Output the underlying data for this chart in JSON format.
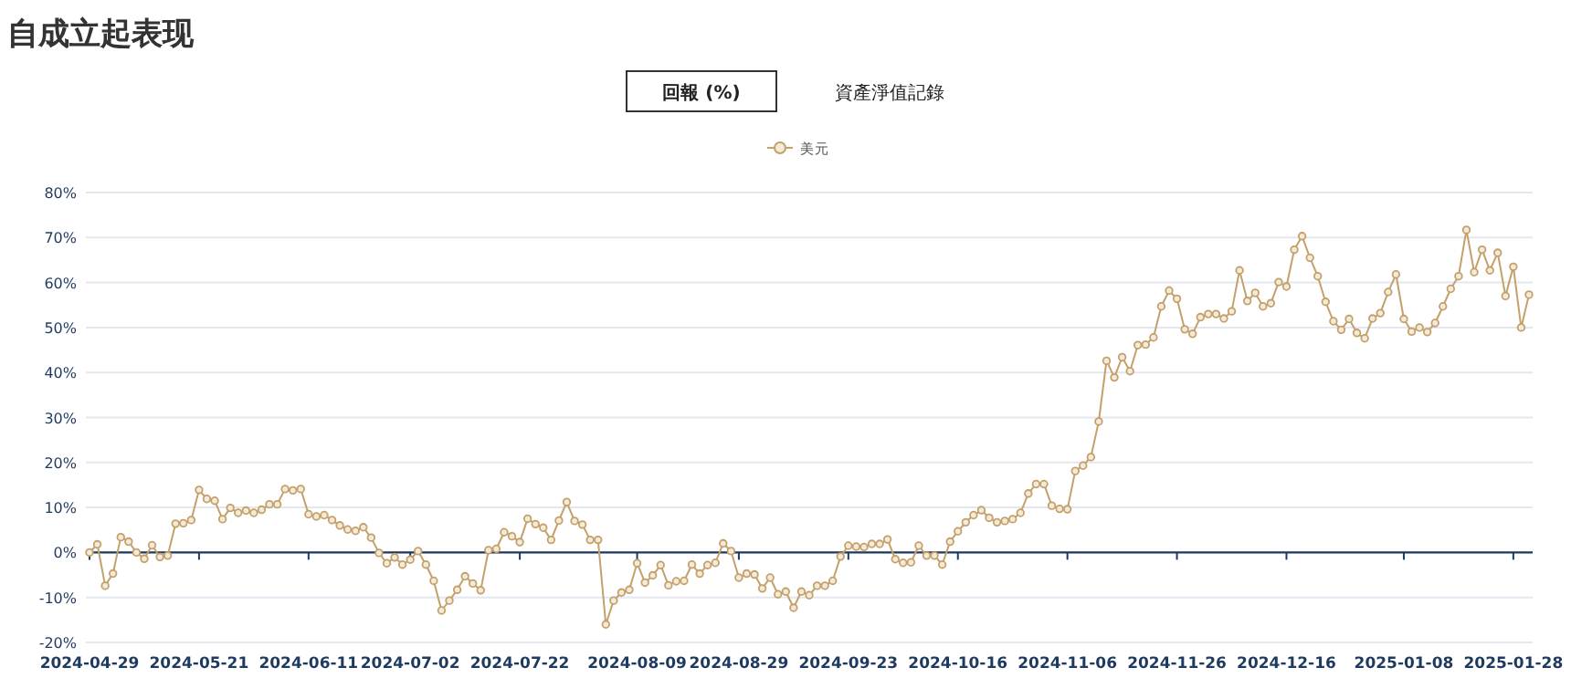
{
  "chart_data": {
    "type": "line",
    "title": "自成立起表现",
    "annotations": [
      "回報 (%)",
      "資產淨值記錄"
    ],
    "categories": [
      "2024-04-29",
      null,
      null,
      null,
      null,
      null,
      null,
      null,
      null,
      null,
      null,
      null,
      null,
      null,
      "2024-05-21",
      null,
      null,
      null,
      null,
      null,
      null,
      null,
      null,
      null,
      null,
      null,
      null,
      null,
      "2024-06-11",
      null,
      null,
      null,
      null,
      null,
      null,
      null,
      null,
      null,
      null,
      null,
      null,
      "2024-07-02",
      null,
      null,
      null,
      null,
      null,
      null,
      null,
      null,
      null,
      null,
      null,
      null,
      null,
      "2024-07-22",
      null,
      null,
      null,
      null,
      null,
      null,
      null,
      null,
      null,
      null,
      null,
      null,
      null,
      null,
      "2024-08-09",
      null,
      null,
      null,
      null,
      null,
      null,
      null,
      null,
      null,
      null,
      null,
      null,
      "2024-08-29",
      null,
      null,
      null,
      null,
      null,
      null,
      null,
      null,
      null,
      null,
      null,
      null,
      null,
      "2024-09-23",
      null,
      null,
      null,
      null,
      null,
      null,
      null,
      null,
      null,
      null,
      null,
      null,
      null,
      "2024-10-16",
      null,
      null,
      null,
      null,
      null,
      null,
      null,
      null,
      null,
      null,
      null,
      null,
      null,
      "2024-11-06",
      null,
      null,
      null,
      null,
      null,
      null,
      null,
      null,
      null,
      null,
      null,
      null,
      null,
      "2024-11-26",
      null,
      null,
      null,
      null,
      null,
      null,
      null,
      null,
      null,
      null,
      null,
      null,
      null,
      "2024-12-16",
      null,
      null,
      null,
      null,
      null,
      null,
      null,
      null,
      null,
      null,
      null,
      null,
      null,
      null,
      "2025-01-08",
      null,
      null,
      null,
      null,
      null,
      null,
      null,
      null,
      null,
      null,
      null,
      null,
      null,
      "2025-01-28",
      null,
      null
    ],
    "series": [
      {
        "name": "美元",
        "color": "#c4a06a",
        "values": [
          0,
          1.8,
          -7.4,
          -4.7,
          3.4,
          2.4,
          0,
          -1.4,
          1.6,
          -1,
          -0.7,
          6.4,
          6.5,
          7.2,
          13.9,
          11.9,
          11.5,
          7.4,
          9.9,
          8.8,
          9.3,
          8.8,
          9.5,
          10.7,
          10.7,
          14.1,
          13.8,
          14.1,
          8.5,
          8.0,
          8.3,
          7.2,
          6.0,
          5.1,
          4.8,
          5.6,
          3.3,
          -0.1,
          -2.4,
          -1.1,
          -2.7,
          -1.6,
          0.3,
          -2.7,
          -6.3,
          -12.9,
          -10.7,
          -8.3,
          -5.3,
          -6.9,
          -8.4,
          0.5,
          0.8,
          4.5,
          3.6,
          2.3,
          7.5,
          6.3,
          5.5,
          2.8,
          7.1,
          11.2,
          7.0,
          6.2,
          2.8,
          2.8,
          -16,
          -10.7,
          -8.9,
          -8.3,
          -2.4,
          -6.7,
          -5.1,
          -2.8,
          -7.3,
          -6.4,
          -6.3,
          -2.7,
          -4.7,
          -2.8,
          -2.3,
          2.0,
          0.3,
          -5.6,
          -4.7,
          -4.9,
          -8.0,
          -5.6,
          -9.3,
          -8.7,
          -12.3,
          -8.7,
          -9.5,
          -7.4,
          -7.4,
          -6.3,
          -0.9,
          1.5,
          1.3,
          1.2,
          1.9,
          1.9,
          2.9,
          -1.5,
          -2.3,
          -2.2,
          1.5,
          -0.7,
          -0.7,
          -2.7,
          2.4,
          4.7,
          6.7,
          8.3,
          9.4,
          7.7,
          6.7,
          7.0,
          7.4,
          8.8,
          13.1,
          15.2,
          15.2,
          10.4,
          9.7,
          9.6,
          18.1,
          19.3,
          21.2,
          29.1,
          42.6,
          38.9,
          43.4,
          40.3,
          46.1,
          46.2,
          47.8,
          54.7,
          58.2,
          56.4,
          49.6,
          48.6,
          52.3,
          53.0,
          53.0,
          52.0,
          53.6,
          62.7,
          55.9,
          57.7,
          54.7,
          55.4,
          60.1,
          59.1,
          67.3,
          70.3,
          65.5,
          61.4,
          55.7,
          51.4,
          49.5,
          51.9,
          48.8,
          47.6,
          52.0,
          53.2,
          57.9,
          61.8,
          51.9,
          49.1,
          50.0,
          49.0,
          51.0,
          54.7,
          58.6,
          61.4,
          71.7,
          62.3,
          67.3,
          62.7,
          66.6,
          57.0,
          63.5,
          50.0,
          57.3
        ]
      }
    ],
    "ylim": [
      -20,
      80
    ],
    "yticks": [
      {
        "value": -20,
        "label": "-20%"
      },
      {
        "value": -10,
        "label": "-10%"
      },
      {
        "value": 0,
        "label": "0%"
      },
      {
        "value": 10,
        "label": "10%"
      },
      {
        "value": 20,
        "label": "20%"
      },
      {
        "value": 30,
        "label": "30%"
      },
      {
        "value": 40,
        "label": "40%"
      },
      {
        "value": 50,
        "label": "50%"
      },
      {
        "value": 60,
        "label": "60%"
      },
      {
        "value": 70,
        "label": "70%"
      },
      {
        "value": 80,
        "label": "80%"
      }
    ],
    "grid": "y",
    "legend": "top",
    "marker": "circle"
  }
}
